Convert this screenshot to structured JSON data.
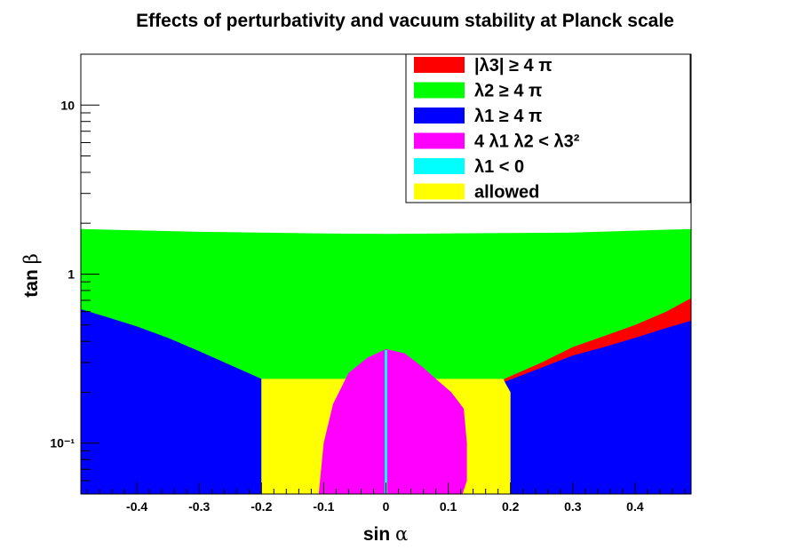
{
  "chart_data": {
    "type": "area",
    "title": "Effects of perturbativity and vacuum stability at Planck scale",
    "xlabel": "sin α",
    "ylabel": "tan β",
    "xlim": [
      -0.49,
      0.49
    ],
    "ylim": [
      0.05,
      20
    ],
    "y_scale": "log",
    "x_ticks": [
      "-0.4",
      "-0.3",
      "-0.2",
      "-0.1",
      "0",
      "0.1",
      "0.2",
      "0.3",
      "0.4"
    ],
    "x_tick_values": [
      -0.4,
      -0.3,
      -0.2,
      -0.1,
      0,
      0.1,
      0.2,
      0.3,
      0.4
    ],
    "y_ticks": [
      "10⁻¹",
      "1",
      "10"
    ],
    "y_tick_values": [
      0.1,
      1,
      10
    ],
    "grid": false,
    "legend_position": "top-right",
    "legend": [
      {
        "key": "l3",
        "label": "|λ3| ≥ 4 π",
        "color": "#ff0000"
      },
      {
        "key": "l2",
        "label": "λ2 ≥ 4 π",
        "color": "#00ff00"
      },
      {
        "key": "l1",
        "label": "λ1 ≥ 4 π",
        "color": "#0000ff"
      },
      {
        "key": "vs",
        "label": "4 λ1 λ2 < λ3²",
        "color": "#ff00ff"
      },
      {
        "key": "l1neg",
        "label": "λ1 < 0",
        "color": "#00ffff"
      },
      {
        "key": "allowed",
        "label": "allowed",
        "color": "#ffff00"
      }
    ],
    "regions": {
      "l2_upper_boundary": {
        "x": [
          -0.49,
          -0.3,
          -0.1,
          0,
          0.1,
          0.3,
          0.49
        ],
        "y": [
          1.85,
          1.78,
          1.74,
          1.73,
          1.74,
          1.76,
          1.85
        ]
      },
      "l1_left_boundary": {
        "x": [
          -0.49,
          -0.45,
          -0.4,
          -0.35,
          -0.3,
          -0.25,
          -0.2
        ],
        "y": [
          0.62,
          0.56,
          0.49,
          0.42,
          0.35,
          0.29,
          0.24
        ]
      },
      "l1_right_boundary": {
        "x": [
          0.19,
          0.25,
          0.3,
          0.35,
          0.4,
          0.45,
          0.49
        ],
        "y": [
          0.23,
          0.28,
          0.33,
          0.37,
          0.42,
          0.48,
          0.53
        ]
      },
      "l3_upper_boundary": {
        "x": [
          0.19,
          0.25,
          0.3,
          0.35,
          0.4,
          0.45,
          0.49
        ],
        "y": [
          0.24,
          0.3,
          0.37,
          0.43,
          0.5,
          0.6,
          0.72
        ]
      },
      "allowed_top": 0.24,
      "allowed_x_range": [
        -0.2,
        0.2
      ],
      "vs_boundary": {
        "x": [
          -0.108,
          -0.1,
          -0.085,
          -0.06,
          -0.03,
          0,
          0.03,
          0.06,
          0.08,
          0.105,
          0.125,
          0.13,
          0.13,
          0.123
        ],
        "y": [
          0.05,
          0.1,
          0.17,
          0.26,
          0.32,
          0.36,
          0.34,
          0.28,
          0.24,
          0.2,
          0.16,
          0.1,
          0.06,
          0.05
        ]
      },
      "l1neg_x": 0
    }
  }
}
